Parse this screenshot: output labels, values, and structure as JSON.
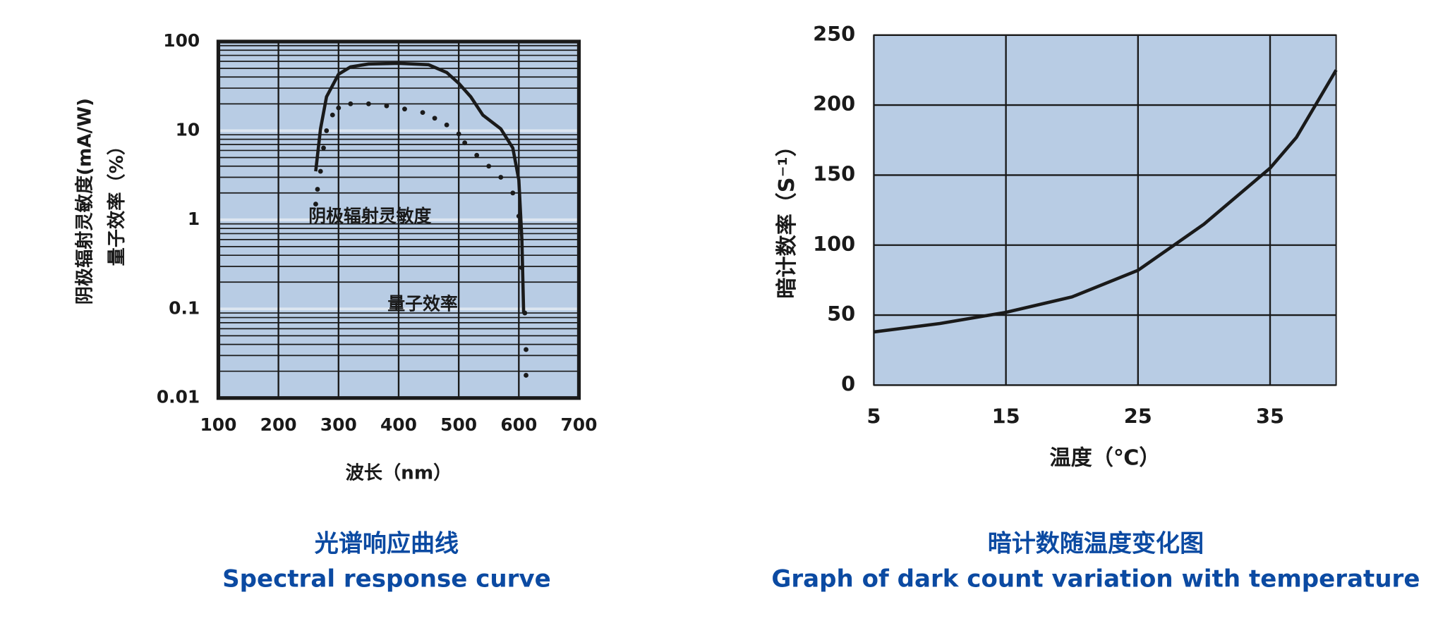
{
  "chart_data": [
    {
      "type": "line",
      "log_y": true,
      "grid": true,
      "background": "#b8cce4",
      "x_label": "波长（nm）",
      "y_label": [
        "阴极辐射灵敏度(mA/W)",
        "量子效率（%）"
      ],
      "caption": [
        "光谱响应曲线",
        "Spectral response curve"
      ],
      "xlim": [
        100,
        700
      ],
      "xticks": [
        100,
        200,
        300,
        400,
        500,
        600,
        700
      ],
      "ylim": [
        0.01,
        100
      ],
      "yticks": [
        100,
        10,
        1,
        0.1,
        0.01
      ],
      "series": [
        {
          "name": "阴极辐射灵敏度",
          "style": "solid",
          "color": "#1a1a1a",
          "x": [
            262,
            270,
            280,
            300,
            320,
            350,
            400,
            450,
            480,
            500,
            520,
            540,
            570,
            590,
            600,
            605,
            608
          ],
          "values": [
            3.5,
            10.5,
            24,
            43,
            52,
            56,
            57,
            55,
            45,
            34,
            24,
            15,
            10.5,
            6.4,
            2.8,
            0.6,
            0.09
          ]
        },
        {
          "name": "量子效率",
          "style": "dotted",
          "color": "#1a1a1a",
          "x": [
            262,
            265,
            270,
            275,
            280,
            290,
            300,
            320,
            350,
            380,
            410,
            440,
            460,
            480,
            500,
            510,
            530,
            550,
            570,
            590,
            600,
            605,
            610,
            612,
            612
          ],
          "values": [
            1.5,
            2.2,
            3.5,
            6.4,
            10,
            15,
            18,
            20,
            20,
            19,
            17.5,
            16,
            13.8,
            11.6,
            9.2,
            7.3,
            5.3,
            4,
            3,
            2,
            1.1,
            0.29,
            0.09,
            0.035,
            0.018
          ]
        }
      ]
    },
    {
      "type": "line",
      "log_y": false,
      "grid": true,
      "background": "#b8cce4",
      "x_label": "温度（℃）",
      "y_label": [
        "暗计数率（S⁻¹）"
      ],
      "caption": [
        "暗计数随温度变化图",
        "Graph of dark count variation with temperature"
      ],
      "xlim": [
        5,
        40
      ],
      "xticks": [
        5,
        15,
        25,
        35
      ],
      "ylim": [
        0,
        250
      ],
      "yticks": [
        0,
        50,
        100,
        150,
        200,
        250
      ],
      "series": [
        {
          "style": "solid",
          "color": "#1a1a1a",
          "x": [
            5,
            10,
            15,
            20,
            25,
            30,
            35,
            37,
            40
          ],
          "values": [
            38,
            44,
            52,
            63,
            82,
            115,
            155,
            177,
            225
          ]
        }
      ]
    }
  ]
}
